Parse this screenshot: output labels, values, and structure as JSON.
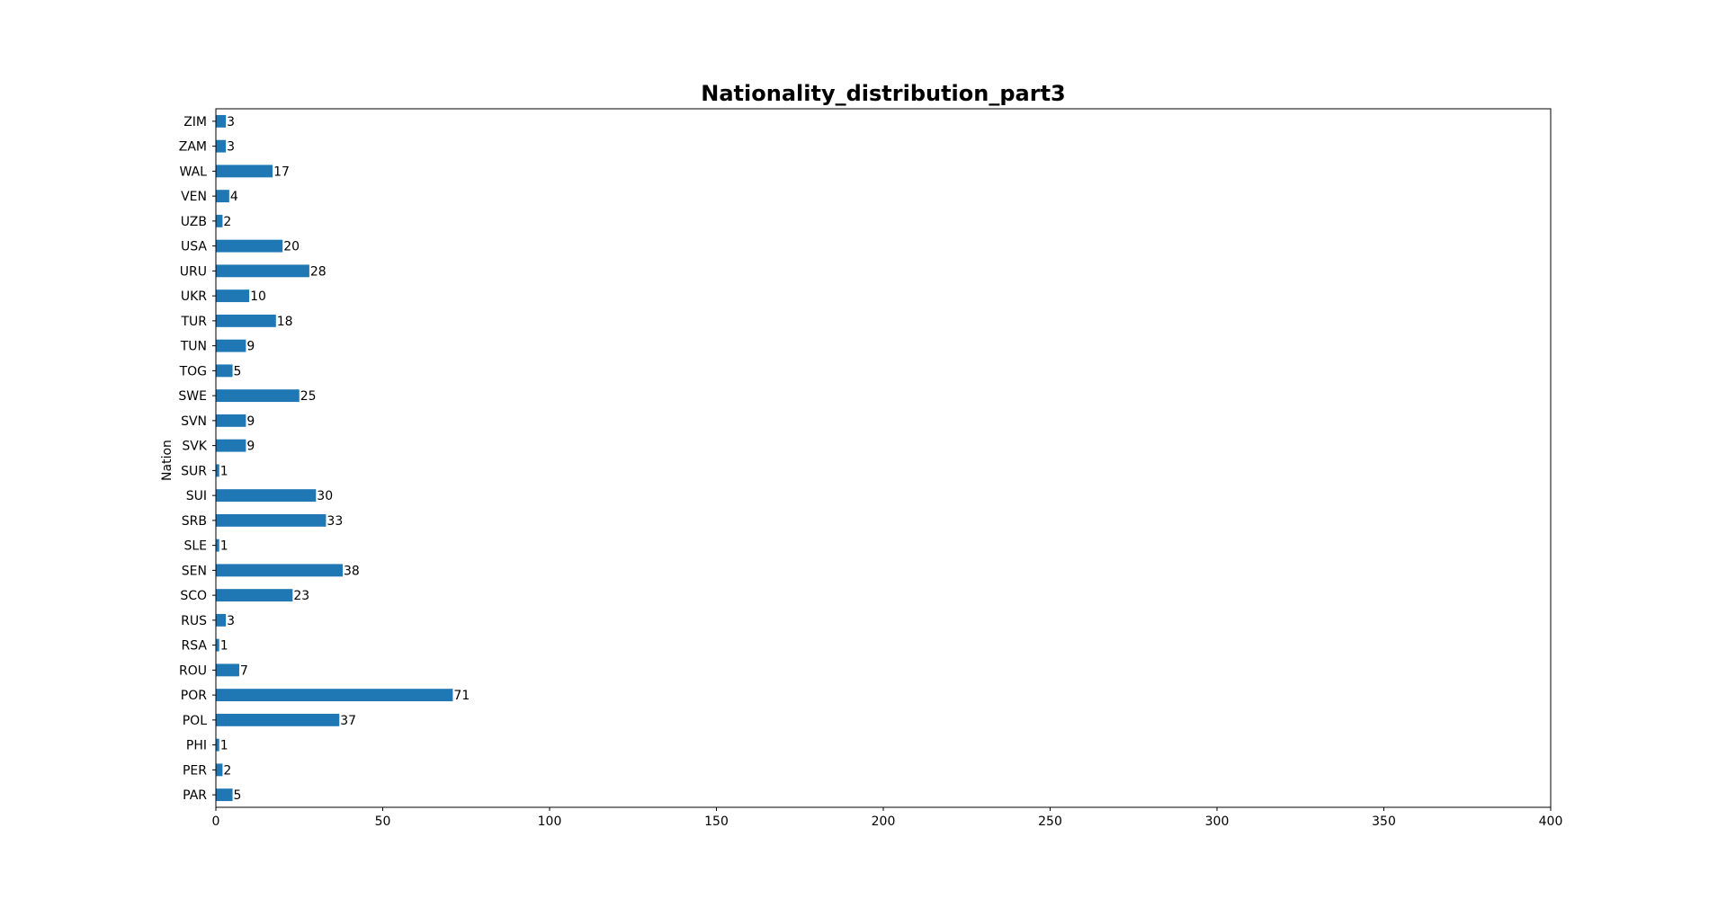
{
  "chart_data": {
    "type": "bar",
    "orientation": "horizontal",
    "title": "Nationality_distribution_part3",
    "xlabel": "",
    "ylabel": "Nation",
    "xlim": [
      0,
      400
    ],
    "xticks": [
      0,
      50,
      100,
      150,
      200,
      250,
      300,
      350,
      400
    ],
    "grid": false,
    "bar_color": "#1f77b4",
    "categories": [
      "ZIM",
      "ZAM",
      "WAL",
      "VEN",
      "UZB",
      "USA",
      "URU",
      "UKR",
      "TUR",
      "TUN",
      "TOG",
      "SWE",
      "SVN",
      "SVK",
      "SUR",
      "SUI",
      "SRB",
      "SLE",
      "SEN",
      "SCO",
      "RUS",
      "RSA",
      "ROU",
      "POR",
      "POL",
      "PHI",
      "PER",
      "PAR"
    ],
    "values": [
      3,
      3,
      17,
      4,
      2,
      20,
      28,
      10,
      18,
      9,
      5,
      25,
      9,
      9,
      1,
      30,
      33,
      1,
      38,
      23,
      3,
      1,
      7,
      71,
      37,
      1,
      2,
      5
    ]
  }
}
